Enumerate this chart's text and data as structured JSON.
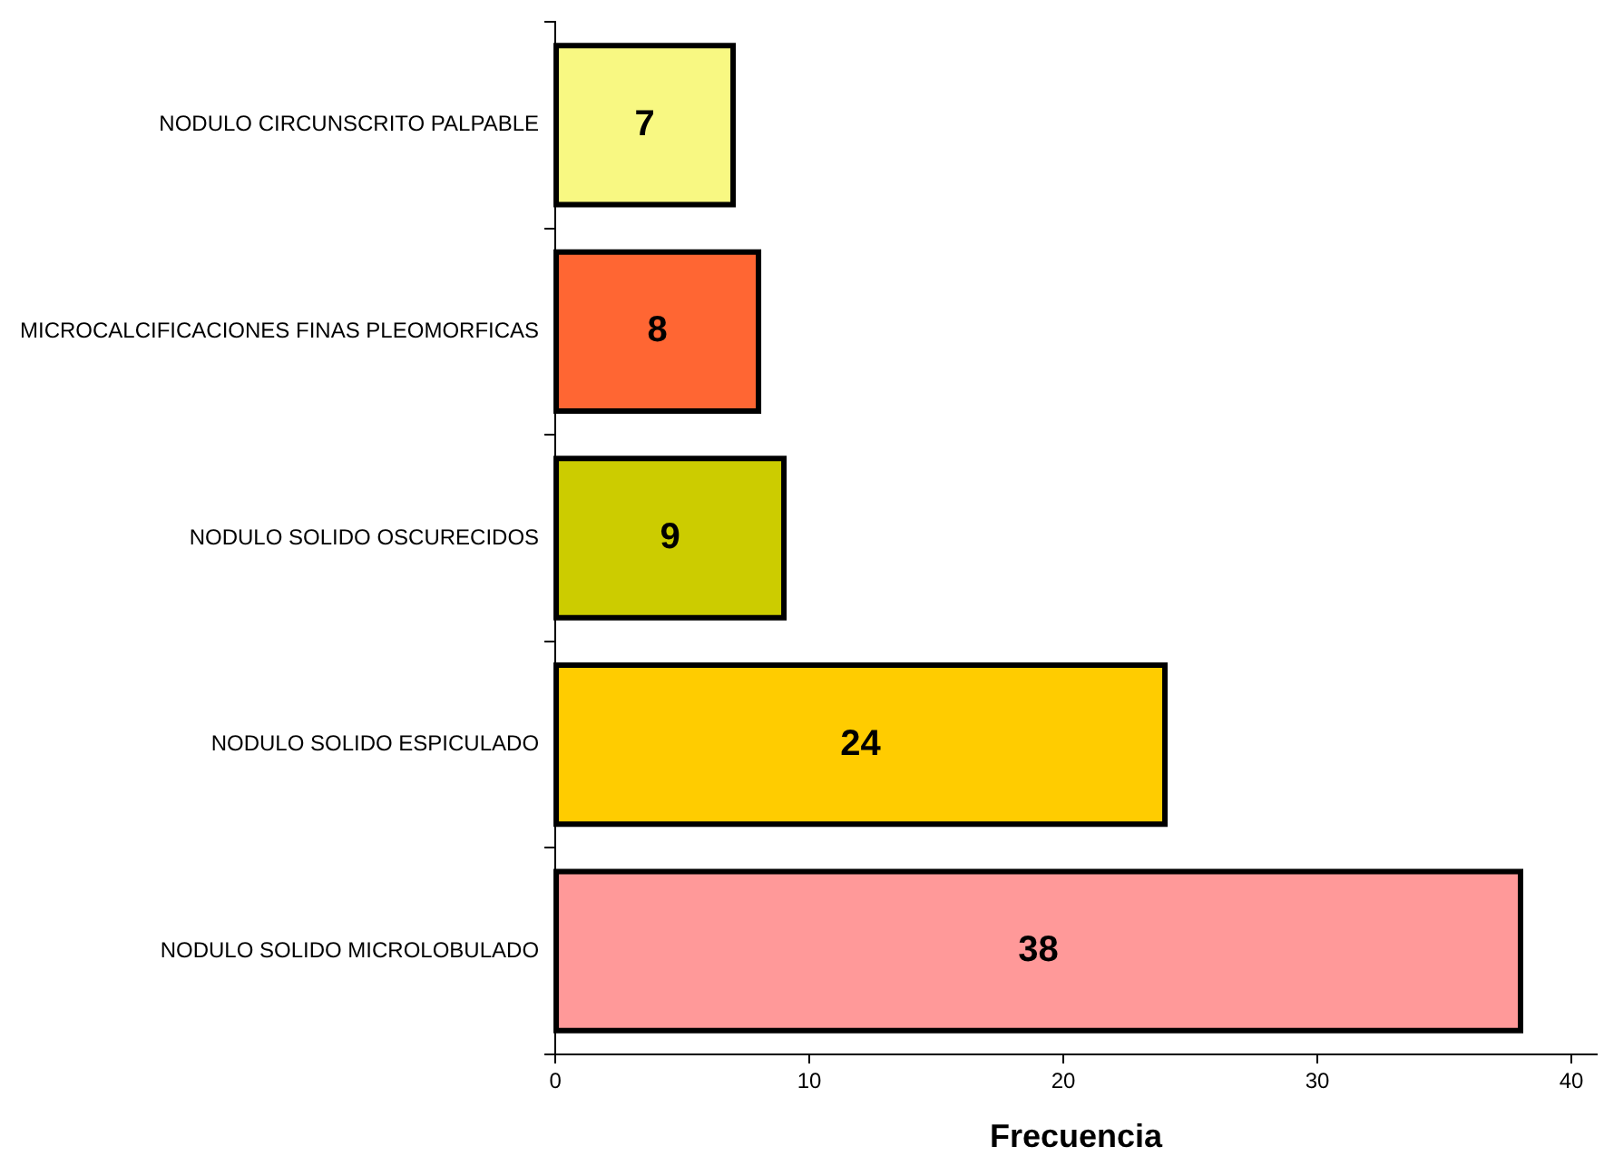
{
  "chart_data": {
    "type": "bar",
    "orientation": "horizontal",
    "xlabel": "Frecuencia",
    "categories": [
      "NODULO CIRCUNSCRITO PALPABLE",
      "MICROCALCIFICACIONES FINAS PLEOMORFICAS",
      "NODULO SOLIDO OSCURECIDOS",
      "NODULO SOLIDO ESPICULADO",
      "NODULO SOLIDO MICROLOBULADO"
    ],
    "values": [
      7,
      8,
      9,
      24,
      38
    ],
    "colors": [
      "#f8f882",
      "#ff6633",
      "#cccc00",
      "#ffcc00",
      "#ff9999"
    ],
    "xlim": [
      0,
      41
    ],
    "xticks": [
      0,
      10,
      20,
      30,
      40
    ],
    "data_labels": true,
    "grid": false,
    "legend": false
  }
}
